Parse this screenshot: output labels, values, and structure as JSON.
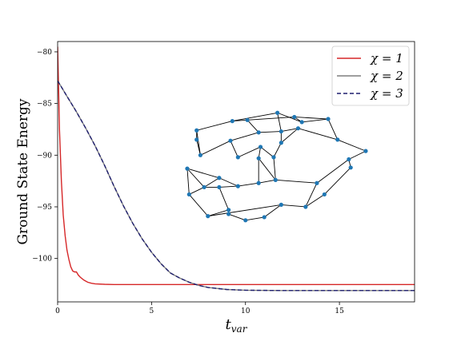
{
  "chart_data": {
    "type": "line",
    "xlabel": "t_var",
    "ylabel": "Ground State Energy",
    "xlim": [
      0,
      19
    ],
    "ylim": [
      -104.2,
      -79
    ],
    "x_ticks": [
      0,
      5,
      10,
      15
    ],
    "y_ticks": [
      -80,
      -85,
      -90,
      -95,
      -100
    ],
    "x_tick_labels": [
      "0",
      "5",
      "10",
      "15"
    ],
    "y_tick_labels": [
      "−80",
      "−85",
      "−90",
      "−95",
      "−100"
    ],
    "legend_position": "top-right",
    "series": [
      {
        "name": "χ = 1",
        "color": "#d62728",
        "dash": "solid",
        "x": [
          0,
          0.05,
          0.1,
          0.2,
          0.3,
          0.4,
          0.5,
          0.6,
          0.7,
          0.8,
          0.9,
          1.0,
          1.1,
          1.2,
          1.4,
          1.6,
          1.8,
          2.0,
          2.5,
          3.0,
          4.0,
          6.0,
          8.0,
          10.0,
          14.0,
          19.0
        ],
        "values": [
          -79.5,
          -83.5,
          -87.5,
          -92.5,
          -95.8,
          -97.8,
          -99.2,
          -100.1,
          -100.8,
          -101.2,
          -101.3,
          -101.3,
          -101.6,
          -101.8,
          -102.1,
          -102.3,
          -102.4,
          -102.45,
          -102.5,
          -102.52,
          -102.52,
          -102.52,
          -102.52,
          -102.52,
          -102.52,
          -102.52
        ]
      },
      {
        "name": "χ = 2",
        "color": "#7f7f7f",
        "dash": "solid",
        "x": [
          0,
          0.2,
          0.5,
          0.8,
          1.0,
          1.5,
          2.0,
          2.5,
          3.0,
          3.5,
          4.0,
          4.5,
          5.0,
          5.5,
          6.0,
          6.5,
          7.0,
          7.5,
          8.0,
          9.0,
          10.0,
          12.0,
          14.0,
          16.0,
          19.0
        ],
        "values": [
          -82.8,
          -83.4,
          -84.3,
          -85.2,
          -85.8,
          -87.4,
          -89.1,
          -91.0,
          -93.0,
          -94.9,
          -96.6,
          -98.1,
          -99.4,
          -100.5,
          -101.4,
          -101.9,
          -102.3,
          -102.6,
          -102.8,
          -103.0,
          -103.07,
          -103.1,
          -103.1,
          -103.1,
          -103.1
        ]
      },
      {
        "name": "χ = 3",
        "color": "#1f1f6e",
        "dash": "dashed",
        "x": [
          0,
          0.2,
          0.5,
          0.8,
          1.0,
          1.5,
          2.0,
          2.5,
          3.0,
          3.5,
          4.0,
          4.5,
          5.0,
          5.5,
          6.0,
          6.5,
          7.0,
          7.5,
          8.0,
          9.0,
          10.0,
          12.0,
          14.0,
          16.0,
          19.0
        ],
        "values": [
          -82.8,
          -83.4,
          -84.3,
          -85.2,
          -85.8,
          -87.4,
          -89.1,
          -91.0,
          -93.0,
          -94.9,
          -96.6,
          -98.1,
          -99.4,
          -100.5,
          -101.4,
          -101.9,
          -102.3,
          -102.6,
          -102.8,
          -103.0,
          -103.07,
          -103.1,
          -103.1,
          -103.1,
          -103.1
        ]
      }
    ],
    "inset_graph": {
      "node_color": "#1f77b4",
      "edge_color": "#000000",
      "nodes": [
        [
          7.4,
          -87.6
        ],
        [
          7.4,
          -88.5
        ],
        [
          7.6,
          -90.0
        ],
        [
          6.9,
          -91.3
        ],
        [
          7.0,
          -93.8
        ],
        [
          7.8,
          -93.1
        ],
        [
          8.0,
          -95.9
        ],
        [
          8.6,
          -92.2
        ],
        [
          8.6,
          -93.1
        ],
        [
          9.1,
          -95.3
        ],
        [
          9.1,
          -95.7
        ],
        [
          9.6,
          -93.0
        ],
        [
          9.2,
          -88.6
        ],
        [
          9.6,
          -90.2
        ],
        [
          9.3,
          -86.7
        ],
        [
          10.1,
          -86.6
        ],
        [
          10.7,
          -87.8
        ],
        [
          10.8,
          -89.2
        ],
        [
          10.7,
          -90.3
        ],
        [
          10.0,
          -96.3
        ],
        [
          10.7,
          -92.7
        ],
        [
          11.0,
          -96.0
        ],
        [
          11.6,
          -92.4
        ],
        [
          11.5,
          -90.2
        ],
        [
          11.9,
          -94.8
        ],
        [
          11.9,
          -88.8
        ],
        [
          11.7,
          -85.9
        ],
        [
          11.9,
          -87.7
        ],
        [
          12.6,
          -86.3
        ],
        [
          13.0,
          -86.8
        ],
        [
          12.8,
          -87.4
        ],
        [
          13.2,
          -95.0
        ],
        [
          13.8,
          -92.7
        ],
        [
          14.2,
          -93.8
        ],
        [
          14.4,
          -86.5
        ],
        [
          14.9,
          -88.5
        ],
        [
          15.5,
          -90.4
        ],
        [
          15.6,
          -91.2
        ],
        [
          16.4,
          -89.6
        ]
      ],
      "edges": [
        [
          0,
          1
        ],
        [
          0,
          14
        ],
        [
          1,
          2
        ],
        [
          2,
          12
        ],
        [
          3,
          4
        ],
        [
          3,
          7
        ],
        [
          4,
          6
        ],
        [
          4,
          5
        ],
        [
          5,
          8
        ],
        [
          5,
          7
        ],
        [
          6,
          9
        ],
        [
          6,
          24
        ],
        [
          8,
          9
        ],
        [
          8,
          11
        ],
        [
          9,
          10
        ],
        [
          10,
          19
        ],
        [
          11,
          20
        ],
        [
          11,
          7
        ],
        [
          12,
          13
        ],
        [
          12,
          16
        ],
        [
          13,
          17
        ],
        [
          14,
          15
        ],
        [
          15,
          16
        ],
        [
          15,
          28
        ],
        [
          16,
          27
        ],
        [
          17,
          18
        ],
        [
          17,
          23
        ],
        [
          18,
          20
        ],
        [
          19,
          21
        ],
        [
          20,
          22
        ],
        [
          21,
          24
        ],
        [
          22,
          23
        ],
        [
          22,
          32
        ],
        [
          23,
          25
        ],
        [
          25,
          27
        ],
        [
          25,
          30
        ],
        [
          26,
          27
        ],
        [
          26,
          14
        ],
        [
          26,
          29
        ],
        [
          27,
          30
        ],
        [
          28,
          29
        ],
        [
          28,
          34
        ],
        [
          29,
          34
        ],
        [
          30,
          35
        ],
        [
          31,
          24
        ],
        [
          31,
          33
        ],
        [
          32,
          31
        ],
        [
          32,
          36
        ],
        [
          33,
          37
        ],
        [
          34,
          35
        ],
        [
          35,
          38
        ],
        [
          36,
          38
        ],
        [
          36,
          37
        ],
        [
          0,
          2
        ],
        [
          3,
          5
        ],
        [
          18,
          22
        ]
      ]
    }
  }
}
